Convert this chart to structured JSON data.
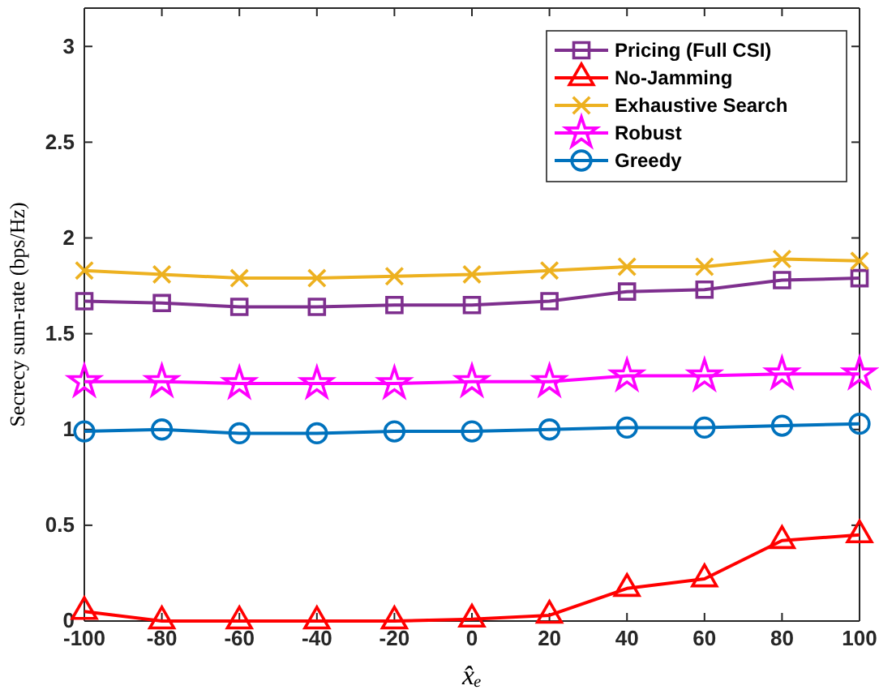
{
  "chart_data": {
    "type": "line",
    "xlabel": "x̂ₑ",
    "ylabel": "Secrecy sum-rate (bps/Hz)",
    "x": [
      -100,
      -80,
      -60,
      -40,
      -20,
      0,
      20,
      40,
      60,
      80,
      100
    ],
    "xlim": [
      -100,
      100
    ],
    "xticks": [
      -100,
      -80,
      -60,
      -40,
      -20,
      0,
      20,
      40,
      60,
      80,
      100
    ],
    "ylim": [
      0,
      3.2
    ],
    "yticks": [
      0,
      0.5,
      1,
      1.5,
      2,
      2.5,
      3
    ],
    "grid": false,
    "legend": "top right",
    "line_style": "solid",
    "series": [
      {
        "name": "Pricing (Full CSI)",
        "color": "#7e2f8e",
        "marker": "square",
        "values": [
          1.67,
          1.66,
          1.64,
          1.64,
          1.65,
          1.65,
          1.67,
          1.72,
          1.73,
          1.78,
          1.79
        ]
      },
      {
        "name": "No-Jamming",
        "color": "#ff0000",
        "marker": "triangle",
        "values": [
          0.05,
          0,
          0,
          0,
          0,
          0.01,
          0.03,
          0.17,
          0.22,
          0.42,
          0.45
        ]
      },
      {
        "name": "Exhaustive Search",
        "color": "#edb120",
        "marker": "cross",
        "values": [
          1.83,
          1.81,
          1.79,
          1.79,
          1.8,
          1.81,
          1.83,
          1.85,
          1.85,
          1.89,
          1.88
        ]
      },
      {
        "name": "Robust",
        "color": "#ff00ff",
        "marker": "star",
        "values": [
          1.25,
          1.25,
          1.24,
          1.24,
          1.24,
          1.25,
          1.25,
          1.28,
          1.28,
          1.29,
          1.29
        ]
      },
      {
        "name": "Greedy",
        "color": "#0072bd",
        "marker": "circle",
        "values": [
          0.99,
          1,
          0.98,
          0.98,
          0.99,
          0.99,
          1,
          1.01,
          1.01,
          1.02,
          1.03
        ]
      }
    ]
  }
}
